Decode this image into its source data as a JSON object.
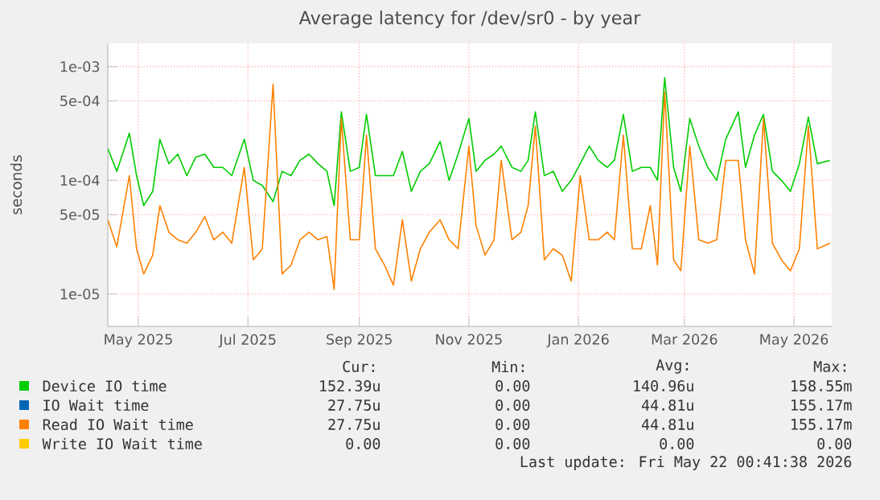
{
  "chart_data": {
    "type": "line",
    "title": "Average latency for /dev/sr0 - by year",
    "ylabel": "seconds",
    "log": "y",
    "grid": true,
    "legend": "bottom",
    "xlim": [
      "2025-04-14",
      "2026-05-22"
    ],
    "xticks": [
      {
        "value": "2025-05-01",
        "label": "May 2025"
      },
      {
        "value": "2025-07-01",
        "label": "Jul 2025"
      },
      {
        "value": "2025-09-01",
        "label": "Sep 2025"
      },
      {
        "value": "2025-11-01",
        "label": "Nov 2025"
      },
      {
        "value": "2026-01-01",
        "label": "Jan 2026"
      },
      {
        "value": "2026-03-01",
        "label": "Mar 2026"
      },
      {
        "value": "2026-05-01",
        "label": "May 2026"
      }
    ],
    "ylim": [
      5.2e-06,
      0.0016
    ],
    "yticks": [
      {
        "value": 1e-05,
        "label": "1e-05"
      },
      {
        "value": 5e-05,
        "label": "5e-05"
      },
      {
        "value": 0.0001,
        "label": "1e-04"
      },
      {
        "value": 0.0005,
        "label": "5e-04"
      },
      {
        "value": 0.001,
        "label": "1e-03"
      }
    ],
    "x": [
      "2025-04-14",
      "2025-04-19",
      "2025-04-26",
      "2025-04-30",
      "2025-05-04",
      "2025-05-09",
      "2025-05-13",
      "2025-05-18",
      "2025-05-23",
      "2025-05-28",
      "2025-06-02",
      "2025-06-07",
      "2025-06-12",
      "2025-06-17",
      "2025-06-22",
      "2025-06-29",
      "2025-07-04",
      "2025-07-09",
      "2025-07-15",
      "2025-07-20",
      "2025-07-25",
      "2025-07-30",
      "2025-08-04",
      "2025-08-09",
      "2025-08-14",
      "2025-08-18",
      "2025-08-22",
      "2025-08-27",
      "2025-09-01",
      "2025-09-05",
      "2025-09-10",
      "2025-09-15",
      "2025-09-20",
      "2025-09-25",
      "2025-09-30",
      "2025-10-05",
      "2025-10-10",
      "2025-10-16",
      "2025-10-21",
      "2025-10-26",
      "2025-11-01",
      "2025-11-05",
      "2025-11-10",
      "2025-11-15",
      "2025-11-19",
      "2025-11-25",
      "2025-11-30",
      "2025-12-04",
      "2025-12-08",
      "2025-12-13",
      "2025-12-18",
      "2025-12-23",
      "2025-12-28",
      "2026-01-02",
      "2026-01-07",
      "2026-01-12",
      "2026-01-17",
      "2026-01-21",
      "2026-01-26",
      "2026-01-31",
      "2026-02-05",
      "2026-02-10",
      "2026-02-14",
      "2026-02-18",
      "2026-02-23",
      "2026-02-27",
      "2026-03-04",
      "2026-03-09",
      "2026-03-14",
      "2026-03-19",
      "2026-03-24",
      "2026-03-31",
      "2026-04-04",
      "2026-04-09",
      "2026-04-14",
      "2026-04-19",
      "2026-04-24",
      "2026-04-29",
      "2026-05-04",
      "2026-05-09",
      "2026-05-14",
      "2026-05-21"
    ],
    "series": [
      {
        "name": "Device IO time",
        "color": "#00cc00",
        "values": [
          0.00019,
          0.00012,
          0.00026,
          0.00011,
          6e-05,
          8e-05,
          0.00023,
          0.00014,
          0.00017,
          0.00011,
          0.00016,
          0.00017,
          0.00013,
          0.00013,
          0.00011,
          0.00023,
          0.0001,
          9e-05,
          6.5e-05,
          0.00012,
          0.00011,
          0.00015,
          0.00017,
          0.00014,
          0.00012,
          6e-05,
          0.0004,
          0.00012,
          0.00013,
          0.00038,
          0.00011,
          0.00011,
          0.00011,
          0.00018,
          8e-05,
          0.00012,
          0.00014,
          0.00022,
          0.0001,
          0.00017,
          0.00035,
          0.00012,
          0.00015,
          0.00017,
          0.0002,
          0.00013,
          0.00012,
          0.00015,
          0.0004,
          0.00011,
          0.00012,
          8e-05,
          0.0001,
          0.00014,
          0.0002,
          0.00015,
          0.00013,
          0.00015,
          0.00038,
          0.00012,
          0.00013,
          0.00013,
          0.0001,
          0.0008,
          0.00013,
          8e-05,
          0.00035,
          0.0002,
          0.00013,
          0.0001,
          0.00023,
          0.0004,
          0.00013,
          0.00025,
          0.00038,
          0.00012,
          0.0001,
          8e-05,
          0.00014,
          0.00036,
          0.00014,
          0.00015
        ]
      },
      {
        "name": "IO Wait time",
        "color": "#0066b3",
        "values": [
          null,
          null,
          null,
          null,
          null,
          null,
          null,
          null,
          null,
          null,
          null,
          null,
          null,
          null,
          null,
          null,
          null,
          null,
          null,
          null,
          null,
          null,
          null,
          null,
          null,
          null,
          null,
          null,
          null,
          null,
          null,
          null,
          null,
          null,
          null,
          null,
          null,
          null,
          null,
          null,
          null,
          null,
          null,
          null,
          null,
          null,
          null,
          null,
          null,
          null,
          null,
          null,
          null,
          null,
          null,
          null,
          null,
          null,
          null,
          null,
          null,
          null,
          null,
          null,
          null,
          null,
          null,
          null,
          null,
          null,
          null,
          null,
          null,
          null,
          null,
          null,
          null,
          null,
          null,
          null,
          null,
          null
        ]
      },
      {
        "name": "Read IO Wait time",
        "color": "#ff8000",
        "values": [
          4.5e-05,
          2.6e-05,
          0.00011,
          2.5e-05,
          1.5e-05,
          2.2e-05,
          6e-05,
          3.5e-05,
          3e-05,
          2.8e-05,
          3.5e-05,
          4.8e-05,
          3e-05,
          3.5e-05,
          2.8e-05,
          0.00013,
          2e-05,
          2.5e-05,
          0.0007,
          1.5e-05,
          1.8e-05,
          3e-05,
          3.5e-05,
          3e-05,
          3.2e-05,
          1.1e-05,
          0.00035,
          3e-05,
          3e-05,
          0.00025,
          2.5e-05,
          1.8e-05,
          1.2e-05,
          4.5e-05,
          1.3e-05,
          2.5e-05,
          3.5e-05,
          4.5e-05,
          3e-05,
          2.5e-05,
          0.0002,
          4e-05,
          2.2e-05,
          3e-05,
          0.00015,
          3e-05,
          3.5e-05,
          6e-05,
          0.0003,
          2e-05,
          2.5e-05,
          2.2e-05,
          1.3e-05,
          0.00011,
          3e-05,
          3e-05,
          3.5e-05,
          3e-05,
          0.00025,
          2.5e-05,
          2.5e-05,
          6e-05,
          1.8e-05,
          0.0006,
          2e-05,
          1.6e-05,
          0.0002,
          3e-05,
          2.8e-05,
          3e-05,
          0.00015,
          0.00015,
          3e-05,
          1.5e-05,
          0.00035,
          2.8e-05,
          2e-05,
          1.6e-05,
          2.5e-05,
          0.0003,
          2.5e-05,
          2.8e-05
        ]
      },
      {
        "name": "Write IO Wait time",
        "color": "#ffcc00",
        "values": [
          null,
          null,
          null,
          null,
          null,
          null,
          null,
          null,
          null,
          null,
          null,
          null,
          null,
          null,
          null,
          null,
          null,
          null,
          null,
          null,
          null,
          null,
          null,
          null,
          null,
          null,
          null,
          null,
          null,
          null,
          null,
          null,
          null,
          null,
          null,
          null,
          null,
          null,
          null,
          null,
          null,
          null,
          null,
          null,
          null,
          null,
          null,
          null,
          null,
          null,
          null,
          null,
          null,
          null,
          null,
          null,
          null,
          null,
          null,
          null,
          null,
          null,
          null,
          null,
          null,
          null,
          null,
          null,
          null,
          null,
          null,
          null,
          null,
          null,
          null,
          null,
          null,
          null,
          null,
          null,
          null,
          null
        ]
      }
    ],
    "annotations": [
      "Cur:",
      "Min:",
      "Avg:",
      "Max:",
      "152.39u",
      "0.00",
      "140.96u",
      "158.55m",
      "27.75u",
      "0.00",
      "44.81u",
      "155.17m",
      "27.75u",
      "0.00",
      "44.81u",
      "155.17m",
      "0.00",
      "0.00",
      "0.00",
      "0.00",
      "Last update: Fri May 22 00:41:38 2026"
    ]
  }
}
